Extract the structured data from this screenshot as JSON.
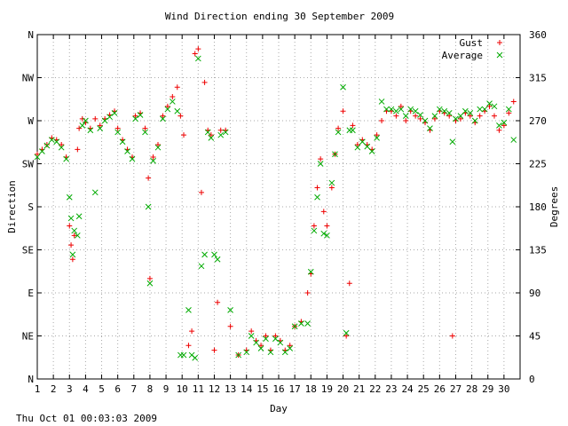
{
  "chart_data": {
    "type": "scatter",
    "title": "Wind Direction ending 30 September 2009",
    "xlabel": "Day",
    "ylabel_left": "Direction",
    "ylabel_right": "Degrees",
    "xlim": [
      1,
      31
    ],
    "ylim": [
      0,
      360
    ],
    "grid": true,
    "legend_position": "top-right",
    "x_ticks": [
      "1",
      "2",
      "3",
      "4",
      "5",
      "6",
      "7",
      "8",
      "9",
      "10",
      "11",
      "12",
      "13",
      "14",
      "15",
      "16",
      "17",
      "18",
      "19",
      "20",
      "21",
      "22",
      "23",
      "24",
      "25",
      "26",
      "27",
      "28",
      "29",
      "30"
    ],
    "left_ticks": [
      {
        "label": "N",
        "deg": 0
      },
      {
        "label": "NE",
        "deg": 45
      },
      {
        "label": "E",
        "deg": 90
      },
      {
        "label": "SE",
        "deg": 135
      },
      {
        "label": "S",
        "deg": 180
      },
      {
        "label": "SW",
        "deg": 225
      },
      {
        "label": "W",
        "deg": 270
      },
      {
        "label": "NW",
        "deg": 315
      },
      {
        "label": "N",
        "deg": 360
      }
    ],
    "right_ticks": [
      "0",
      "45",
      "90",
      "135",
      "180",
      "225",
      "270",
      "315",
      "360"
    ],
    "series": [
      {
        "name": "Gust",
        "marker": "plus",
        "color": "#ee0000",
        "points": [
          [
            1.0,
            235
          ],
          [
            1.3,
            240
          ],
          [
            1.6,
            245
          ],
          [
            1.9,
            252
          ],
          [
            2.2,
            250
          ],
          [
            2.5,
            245
          ],
          [
            2.8,
            232
          ],
          [
            3.0,
            160
          ],
          [
            3.1,
            140
          ],
          [
            3.2,
            125
          ],
          [
            3.3,
            150
          ],
          [
            3.5,
            240
          ],
          [
            3.6,
            262
          ],
          [
            3.8,
            272
          ],
          [
            4.0,
            268
          ],
          [
            4.3,
            262
          ],
          [
            4.6,
            272
          ],
          [
            4.9,
            265
          ],
          [
            5.2,
            272
          ],
          [
            5.5,
            276
          ],
          [
            5.8,
            280
          ],
          [
            6.0,
            262
          ],
          [
            6.3,
            250
          ],
          [
            6.6,
            240
          ],
          [
            6.9,
            232
          ],
          [
            7.1,
            275
          ],
          [
            7.4,
            278
          ],
          [
            7.7,
            262
          ],
          [
            7.9,
            210
          ],
          [
            8.0,
            105
          ],
          [
            8.2,
            232
          ],
          [
            8.5,
            245
          ],
          [
            8.8,
            275
          ],
          [
            9.1,
            285
          ],
          [
            9.4,
            295
          ],
          [
            9.7,
            305
          ],
          [
            9.9,
            275
          ],
          [
            10.1,
            255
          ],
          [
            10.4,
            35
          ],
          [
            10.6,
            50
          ],
          [
            10.8,
            340
          ],
          [
            11.0,
            345
          ],
          [
            11.2,
            195
          ],
          [
            11.4,
            310
          ],
          [
            11.6,
            260
          ],
          [
            11.8,
            255
          ],
          [
            12.0,
            30
          ],
          [
            12.2,
            80
          ],
          [
            12.4,
            260
          ],
          [
            12.7,
            260
          ],
          [
            13.0,
            55
          ],
          [
            13.5,
            25
          ],
          [
            14.0,
            30
          ],
          [
            14.3,
            50
          ],
          [
            14.6,
            40
          ],
          [
            14.9,
            35
          ],
          [
            15.2,
            45
          ],
          [
            15.5,
            30
          ],
          [
            15.8,
            45
          ],
          [
            16.1,
            40
          ],
          [
            16.4,
            30
          ],
          [
            16.7,
            35
          ],
          [
            17.0,
            55
          ],
          [
            17.4,
            60
          ],
          [
            17.8,
            90
          ],
          [
            18.0,
            110
          ],
          [
            18.2,
            160
          ],
          [
            18.4,
            200
          ],
          [
            18.6,
            230
          ],
          [
            18.8,
            175
          ],
          [
            19.0,
            160
          ],
          [
            19.3,
            200
          ],
          [
            19.5,
            235
          ],
          [
            19.7,
            262
          ],
          [
            20.0,
            280
          ],
          [
            20.2,
            45
          ],
          [
            20.4,
            100
          ],
          [
            20.6,
            265
          ],
          [
            20.9,
            245
          ],
          [
            21.2,
            250
          ],
          [
            21.5,
            245
          ],
          [
            21.8,
            240
          ],
          [
            22.1,
            255
          ],
          [
            22.4,
            270
          ],
          [
            22.7,
            280
          ],
          [
            23.0,
            280
          ],
          [
            23.3,
            275
          ],
          [
            23.6,
            285
          ],
          [
            23.9,
            270
          ],
          [
            24.2,
            280
          ],
          [
            24.5,
            275
          ],
          [
            24.8,
            272
          ],
          [
            25.1,
            268
          ],
          [
            25.4,
            260
          ],
          [
            25.7,
            272
          ],
          [
            26.0,
            280
          ],
          [
            26.3,
            278
          ],
          [
            26.6,
            275
          ],
          [
            26.8,
            45
          ],
          [
            27.0,
            270
          ],
          [
            27.3,
            272
          ],
          [
            27.6,
            278
          ],
          [
            27.9,
            275
          ],
          [
            28.2,
            268
          ],
          [
            28.5,
            275
          ],
          [
            28.8,
            280
          ],
          [
            29.1,
            285
          ],
          [
            29.4,
            275
          ],
          [
            29.7,
            260
          ],
          [
            30.0,
            265
          ],
          [
            30.3,
            278
          ],
          [
            30.6,
            290
          ]
        ]
      },
      {
        "name": "Average",
        "marker": "cross",
        "color": "#00aa00",
        "points": [
          [
            1.0,
            232
          ],
          [
            1.3,
            238
          ],
          [
            1.6,
            244
          ],
          [
            1.9,
            250
          ],
          [
            2.2,
            248
          ],
          [
            2.5,
            242
          ],
          [
            2.8,
            230
          ],
          [
            3.0,
            190
          ],
          [
            3.1,
            168
          ],
          [
            3.2,
            130
          ],
          [
            3.3,
            155
          ],
          [
            3.5,
            150
          ],
          [
            3.6,
            170
          ],
          [
            3.8,
            265
          ],
          [
            4.0,
            270
          ],
          [
            4.3,
            260
          ],
          [
            4.6,
            195
          ],
          [
            4.9,
            262
          ],
          [
            5.2,
            270
          ],
          [
            5.5,
            274
          ],
          [
            5.8,
            278
          ],
          [
            6.0,
            258
          ],
          [
            6.3,
            248
          ],
          [
            6.6,
            238
          ],
          [
            6.9,
            230
          ],
          [
            7.1,
            272
          ],
          [
            7.4,
            276
          ],
          [
            7.7,
            258
          ],
          [
            7.9,
            180
          ],
          [
            8.0,
            100
          ],
          [
            8.2,
            228
          ],
          [
            8.5,
            242
          ],
          [
            8.8,
            272
          ],
          [
            9.1,
            282
          ],
          [
            9.4,
            290
          ],
          [
            9.7,
            280
          ],
          [
            9.9,
            25
          ],
          [
            10.1,
            25
          ],
          [
            10.4,
            72
          ],
          [
            10.6,
            25
          ],
          [
            10.8,
            22
          ],
          [
            11.0,
            335
          ],
          [
            11.2,
            118
          ],
          [
            11.4,
            130
          ],
          [
            11.6,
            258
          ],
          [
            11.8,
            252
          ],
          [
            12.0,
            130
          ],
          [
            12.2,
            125
          ],
          [
            12.4,
            255
          ],
          [
            12.7,
            258
          ],
          [
            13.0,
            72
          ],
          [
            13.5,
            25
          ],
          [
            14.0,
            28
          ],
          [
            14.3,
            45
          ],
          [
            14.6,
            38
          ],
          [
            14.9,
            32
          ],
          [
            15.2,
            42
          ],
          [
            15.5,
            28
          ],
          [
            15.8,
            42
          ],
          [
            16.1,
            38
          ],
          [
            16.4,
            28
          ],
          [
            16.7,
            32
          ],
          [
            17.0,
            55
          ],
          [
            17.4,
            58
          ],
          [
            17.8,
            58
          ],
          [
            18.0,
            112
          ],
          [
            18.2,
            155
          ],
          [
            18.4,
            190
          ],
          [
            18.6,
            225
          ],
          [
            18.8,
            152
          ],
          [
            19.0,
            150
          ],
          [
            19.3,
            205
          ],
          [
            19.5,
            235
          ],
          [
            19.7,
            258
          ],
          [
            20.0,
            305
          ],
          [
            20.2,
            48
          ],
          [
            20.4,
            260
          ],
          [
            20.6,
            260
          ],
          [
            20.9,
            242
          ],
          [
            21.2,
            248
          ],
          [
            21.5,
            243
          ],
          [
            21.8,
            238
          ],
          [
            22.1,
            252
          ],
          [
            22.4,
            290
          ],
          [
            22.7,
            282
          ],
          [
            23.0,
            282
          ],
          [
            23.3,
            280
          ],
          [
            23.6,
            282
          ],
          [
            23.9,
            275
          ],
          [
            24.2,
            282
          ],
          [
            24.5,
            280
          ],
          [
            24.8,
            276
          ],
          [
            25.1,
            270
          ],
          [
            25.4,
            262
          ],
          [
            25.7,
            275
          ],
          [
            26.0,
            282
          ],
          [
            26.3,
            280
          ],
          [
            26.6,
            278
          ],
          [
            26.8,
            248
          ],
          [
            27.0,
            272
          ],
          [
            27.3,
            275
          ],
          [
            27.6,
            280
          ],
          [
            27.9,
            278
          ],
          [
            28.2,
            270
          ],
          [
            28.5,
            282
          ],
          [
            28.8,
            282
          ],
          [
            29.1,
            288
          ],
          [
            29.4,
            285
          ],
          [
            29.7,
            265
          ],
          [
            30.0,
            268
          ],
          [
            30.3,
            282
          ],
          [
            30.6,
            250
          ]
        ]
      }
    ]
  },
  "footer": {
    "timestamp": "Thu Oct 01 00:03:03 2009"
  }
}
